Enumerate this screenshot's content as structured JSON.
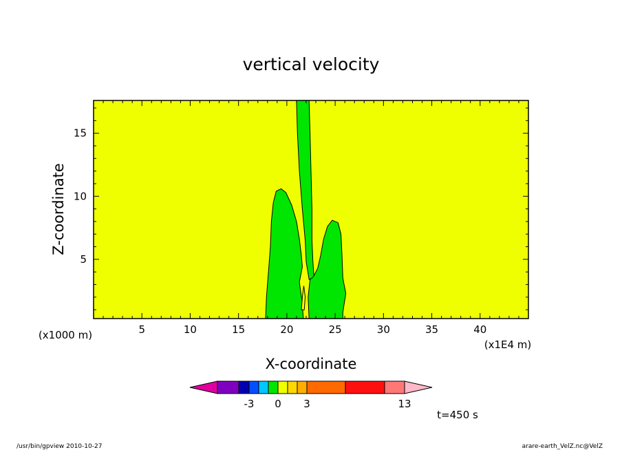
{
  "chart_data": {
    "type": "contour",
    "title": "vertical velocity",
    "xlabel": "X-coordinate",
    "ylabel": "Z-coordinate",
    "x_unit_left": "(x1000 m)",
    "x_unit_right": "(x1E4 m)",
    "xlim": [
      0,
      45
    ],
    "ylim": [
      0.3,
      17.6
    ],
    "x_ticks": [
      "5",
      "10",
      "15",
      "20",
      "25",
      "30",
      "35",
      "40"
    ],
    "y_ticks": [
      "5",
      "10",
      "15"
    ],
    "background_color": "#f0ff00",
    "contours": [
      {
        "name": "left-cell",
        "fill": "#00e600",
        "points": [
          [
            17.8,
            0.3
          ],
          [
            17.9,
            2.1
          ],
          [
            18.1,
            4.0
          ],
          [
            18.3,
            6.0
          ],
          [
            18.4,
            8.0
          ],
          [
            18.6,
            9.5
          ],
          [
            18.9,
            10.4
          ],
          [
            19.4,
            10.6
          ],
          [
            19.9,
            10.3
          ],
          [
            20.5,
            9.3
          ],
          [
            21.0,
            8.0
          ],
          [
            21.3,
            6.6
          ],
          [
            21.5,
            5.3
          ],
          [
            21.6,
            4.4
          ],
          [
            21.3,
            3.2
          ],
          [
            21.6,
            1.5
          ],
          [
            21.7,
            0.3
          ]
        ]
      },
      {
        "name": "right-cell",
        "fill": "#00e600",
        "points": [
          [
            22.3,
            0.3
          ],
          [
            22.2,
            2.0
          ],
          [
            22.4,
            3.4
          ],
          [
            22.8,
            3.7
          ],
          [
            23.2,
            4.3
          ],
          [
            23.5,
            5.3
          ],
          [
            23.8,
            6.6
          ],
          [
            24.2,
            7.6
          ],
          [
            24.7,
            8.1
          ],
          [
            25.3,
            7.9
          ],
          [
            25.6,
            7.0
          ],
          [
            25.7,
            5.5
          ],
          [
            25.8,
            3.5
          ],
          [
            26.1,
            2.3
          ],
          [
            25.8,
            0.8
          ],
          [
            25.8,
            0.3
          ]
        ]
      },
      {
        "name": "updraft-column",
        "fill": "#00e600",
        "points": [
          [
            21.0,
            17.6
          ],
          [
            21.1,
            15.0
          ],
          [
            21.3,
            12.0
          ],
          [
            21.6,
            9.0
          ],
          [
            21.9,
            6.5
          ],
          [
            22.0,
            4.8
          ],
          [
            22.3,
            3.4
          ],
          [
            22.6,
            3.5
          ],
          [
            22.8,
            3.7
          ],
          [
            22.7,
            4.8
          ],
          [
            22.6,
            6.5
          ],
          [
            22.6,
            9.0
          ],
          [
            22.5,
            12.0
          ],
          [
            22.4,
            15.0
          ],
          [
            22.3,
            17.6
          ]
        ]
      },
      {
        "name": "small-core",
        "fill": "#f0ff00",
        "points": [
          [
            21.5,
            1.0
          ],
          [
            21.6,
            2.0
          ],
          [
            21.75,
            2.9
          ],
          [
            21.9,
            2.0
          ],
          [
            21.8,
            1.0
          ]
        ]
      }
    ],
    "colorbar": {
      "colors": [
        "#e000a0",
        "#8000c0",
        "#0000b0",
        "#0050ff",
        "#00c8ff",
        "#00e600",
        "#f0ff00",
        "#ffd800",
        "#ffae00",
        "#ff6a00",
        "#ff1010",
        "#ff7878",
        "#ffb8c8"
      ],
      "labels": [
        "-3",
        "0",
        "3",
        "13"
      ]
    },
    "time_label": "t=450 s"
  },
  "footer": {
    "left": "/usr/bin/gpview  2010-10-27",
    "right": "arare-earth_VelZ.nc@VelZ"
  }
}
